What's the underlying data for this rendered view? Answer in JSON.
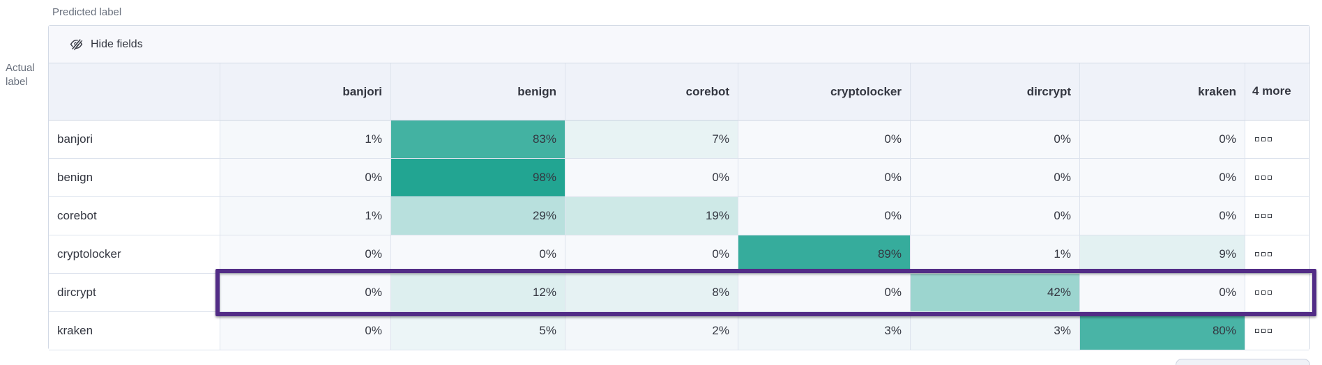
{
  "toolbar": {
    "hide_fields_label": "Hide fields"
  },
  "icons": {
    "toolbar_icon": "eye-slash-icon",
    "row_actions_icon": "boxes-horizontal-icon"
  },
  "chart_data": {
    "type": "heatmap",
    "x_axis_title": "Predicted label",
    "y_axis_title": "Actual label",
    "columns": [
      "banjori",
      "benign",
      "corebot",
      "cryptolocker",
      "dircrypt",
      "kraken"
    ],
    "extra_columns_label": "4 more",
    "row_labels": [
      "banjori",
      "benign",
      "corebot",
      "cryptolocker",
      "dircrypt",
      "kraken"
    ],
    "values": [
      [
        1,
        83,
        7,
        0,
        0,
        0
      ],
      [
        0,
        98,
        0,
        0,
        0,
        0
      ],
      [
        1,
        29,
        19,
        0,
        0,
        0
      ],
      [
        0,
        0,
        0,
        89,
        1,
        9
      ],
      [
        0,
        12,
        8,
        0,
        42,
        0
      ],
      [
        0,
        5,
        2,
        3,
        3,
        80
      ]
    ],
    "unit": "%",
    "highlighted_row": "dircrypt",
    "colors": {
      "heat_low": "#f7f9fc",
      "heat_high": "#1ea390",
      "highlight_border": "#522c86"
    },
    "legend": "off",
    "grid": "on"
  }
}
